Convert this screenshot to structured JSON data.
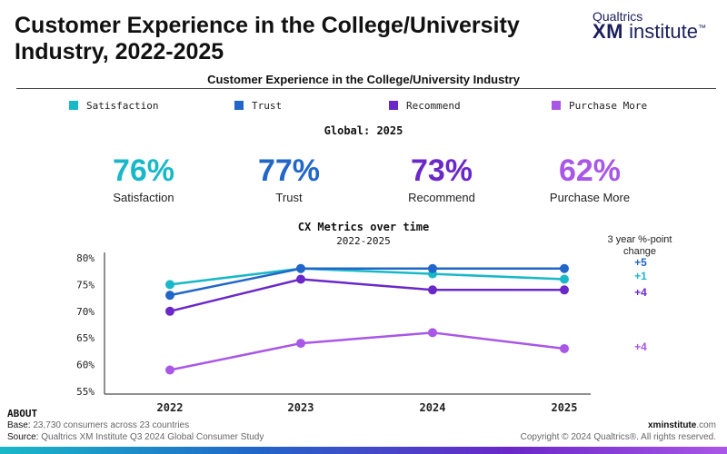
{
  "header": {
    "title": "Customer Experience in the College/University Industry, 2022-2025",
    "logo_top": "Qualtrics",
    "logo_bold": "XM",
    "logo_rest": " institute",
    "logo_tm": "™"
  },
  "subtitle": "Customer Experience in the College/University Industry",
  "colors": {
    "satisfaction": "#19b8c8",
    "trust": "#2166c8",
    "recommend": "#6a28c8",
    "purchase_more": "#a957e6"
  },
  "legend": [
    "Satisfaction",
    "Trust",
    "Recommend",
    "Purchase More"
  ],
  "global_label": "Global: 2025",
  "kpis": [
    {
      "value": "76%",
      "label": "Satisfaction"
    },
    {
      "value": "77%",
      "label": "Trust"
    },
    {
      "value": "73%",
      "label": "Recommend"
    },
    {
      "value": "62%",
      "label": "Purchase More"
    }
  ],
  "chart_data": {
    "type": "line",
    "title": "CX Metrics over time",
    "subtitle": "2022-2025",
    "x": [
      "2022",
      "2023",
      "2024",
      "2025"
    ],
    "ylim": [
      55,
      80
    ],
    "yticks": [
      "80%",
      "75%",
      "70%",
      "65%",
      "60%",
      "55%"
    ],
    "ytick_values": [
      80,
      75,
      70,
      65,
      60,
      55
    ],
    "change_header": "3 year %-point change",
    "series": [
      {
        "name": "Satisfaction",
        "values": [
          75,
          78,
          77,
          76
        ],
        "change": "+1"
      },
      {
        "name": "Trust",
        "values": [
          73,
          78,
          78,
          78
        ],
        "change": "+5"
      },
      {
        "name": "Recommend",
        "values": [
          70,
          76,
          74,
          74
        ],
        "change": "+4"
      },
      {
        "name": "Purchase More",
        "values": [
          59,
          64,
          66,
          63
        ],
        "change": "+4"
      }
    ]
  },
  "footer": {
    "about": "ABOUT",
    "base_label": "Base:",
    "base_value": " 23,730 consumers across 23 countries",
    "source_label": "Source:",
    "source_value": " Qualtrics XM Institute Q3 2024 Global Consumer Study",
    "site_bold": "xminstitute",
    "site_rest": ".com",
    "copyright": "Copyright © 2024 Qualtrics®. All rights reserved."
  }
}
